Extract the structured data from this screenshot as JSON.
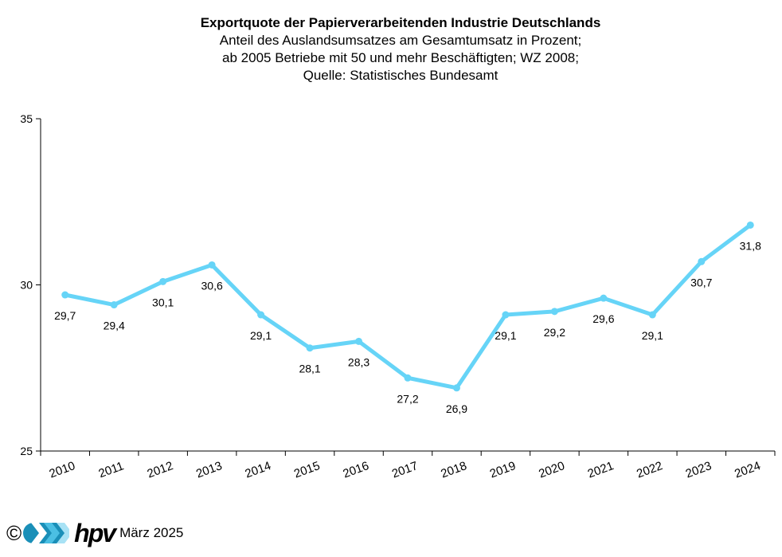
{
  "chart_data": {
    "type": "line",
    "title": "Exportquote der Papierverarbeitenden Industrie Deutschlands",
    "subtitle_lines": [
      "Anteil des Auslandsumsatzes  am Gesamtumsatz in Prozent;",
      "ab 2005 Betriebe mit 50 und  mehr Beschäftigten; WZ 2008;",
      "Quelle: Statistisches Bundesamt"
    ],
    "categories": [
      "2010",
      "2011",
      "2012",
      "2013",
      "2014",
      "2015",
      "2016",
      "2017",
      "2018",
      "2019",
      "2020",
      "2021",
      "2022",
      "2023",
      "2024"
    ],
    "series": [
      {
        "values": [
          29.7,
          29.4,
          30.1,
          30.6,
          29.1,
          28.1,
          28.3,
          27.2,
          26.9,
          29.1,
          29.2,
          29.6,
          29.1,
          30.7,
          31.8
        ],
        "labels": [
          "29,7",
          "29,4",
          "30,1",
          "30,6",
          "29,1",
          "28,1",
          "28,3",
          "27,2",
          "26,9",
          "29,1",
          "29,2",
          "29,6",
          "29,1",
          "30,7",
          "31,8"
        ],
        "color": "#66d4f7"
      }
    ],
    "ylim": [
      25,
      35
    ],
    "yticks": [
      25,
      30,
      35
    ],
    "ytick_labels": [
      "25",
      "30",
      "35"
    ],
    "grid": false,
    "legend": "none"
  },
  "footer": {
    "copyright_symbol": "©",
    "logo_text": "hpv",
    "date": "März 2025"
  },
  "colors": {
    "line": "#66d4f7",
    "axis": "#000000",
    "logo_dark": "#1a8fb8",
    "logo_mid": "#4bbfe3",
    "logo_light": "#a8e2f5"
  }
}
